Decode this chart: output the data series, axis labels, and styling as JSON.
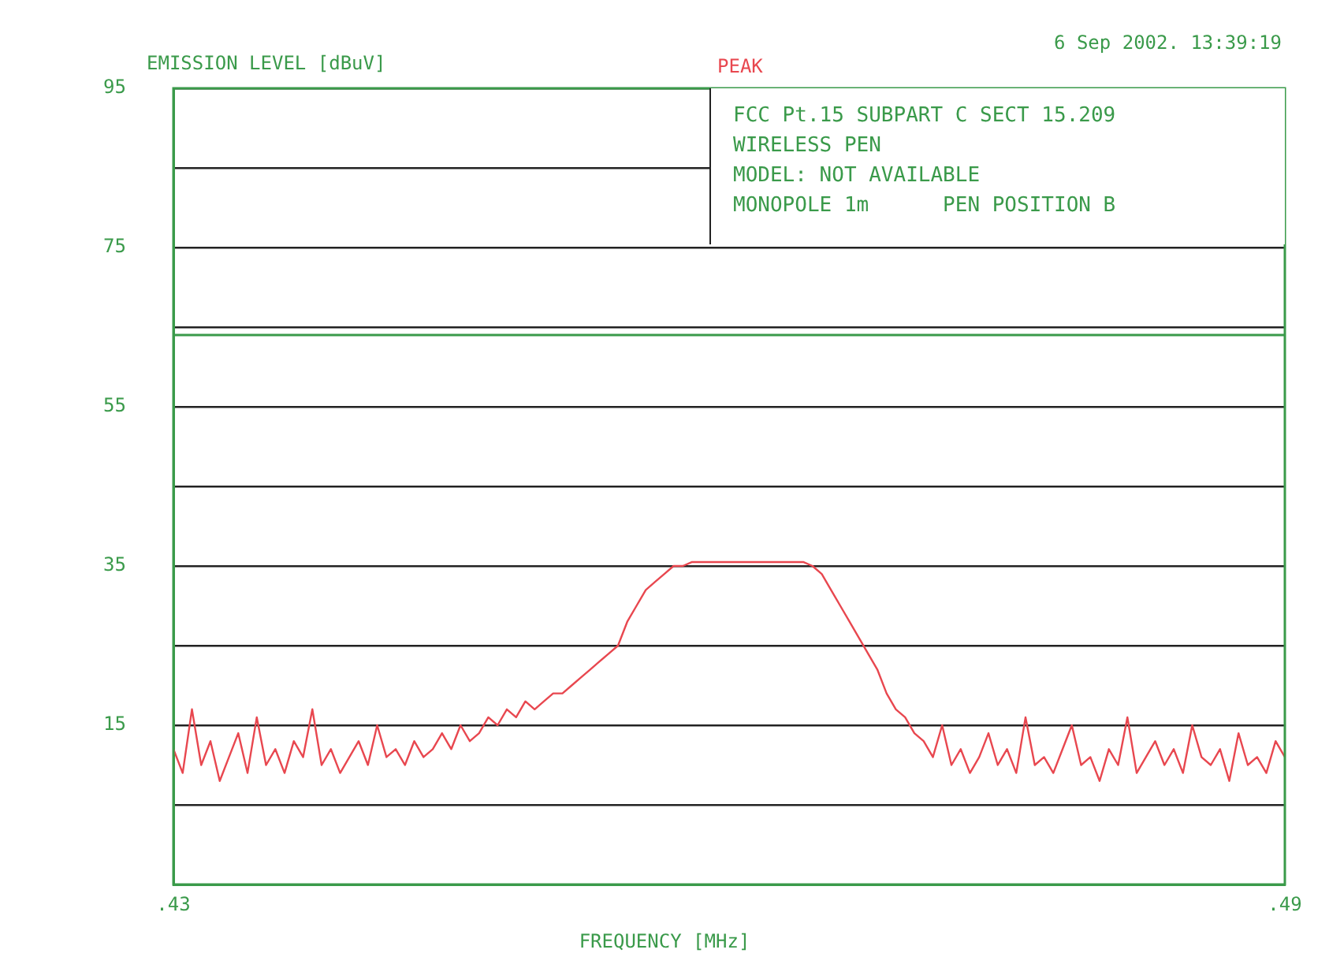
{
  "chart_data": {
    "type": "line",
    "subtitle": "6 Sep 2002. 13:39:19",
    "ylabel": "EMISSION LEVEL [dBuV]",
    "xlabel": "FREQUENCY [MHz]",
    "annotations": [
      "FCC Pt.15 SUBPART C SECT 15.209",
      "WIRELESS PEN",
      "MODEL: NOT AVAILABLE",
      "MONOPOLE 1m      PEN POSITION B"
    ],
    "xlim": [
      0.43,
      0.49
    ],
    "xticks": [
      {
        "value": 0.43,
        "label": ".43"
      },
      {
        "value": 0.49,
        "label": ".49"
      }
    ],
    "ylim": [
      -5,
      95
    ],
    "yticks": [
      95,
      {
        "value": 85,
        "label": null
      },
      75,
      {
        "value": 65,
        "label": null
      },
      55,
      {
        "value": 45,
        "label": null
      },
      35,
      {
        "value": 25,
        "label": null
      },
      15,
      {
        "value": 5,
        "label": null
      }
    ],
    "grid": "y",
    "marker": "none",
    "line_style": "solid",
    "ref_lines": [
      {
        "axis": "y",
        "value": 64,
        "color": "#3a9a4a"
      }
    ],
    "series": [
      {
        "name": "PEAK",
        "color": "#e8474f",
        "x": [
          0.43,
          0.4305,
          0.431,
          0.4315,
          0.432,
          0.4325,
          0.433,
          0.4335,
          0.434,
          0.4345,
          0.435,
          0.4355,
          0.436,
          0.4365,
          0.437,
          0.4375,
          0.438,
          0.4385,
          0.439,
          0.4395,
          0.44,
          0.4405,
          0.441,
          0.4415,
          0.442,
          0.4425,
          0.443,
          0.4435,
          0.444,
          0.4445,
          0.445,
          0.4455,
          0.446,
          0.4465,
          0.447,
          0.4475,
          0.448,
          0.4485,
          0.449,
          0.4495,
          0.45,
          0.4505,
          0.451,
          0.4515,
          0.452,
          0.4525,
          0.453,
          0.4535,
          0.454,
          0.4545,
          0.455,
          0.4555,
          0.456,
          0.4565,
          0.457,
          0.4575,
          0.458,
          0.4585,
          0.459,
          0.4595,
          0.46,
          0.4605,
          0.461,
          0.4615,
          0.462,
          0.4625,
          0.463,
          0.4635,
          0.464,
          0.4645,
          0.465,
          0.4655,
          0.466,
          0.4665,
          0.467,
          0.4675,
          0.468,
          0.4685,
          0.469,
          0.4695,
          0.47,
          0.4705,
          0.471,
          0.4715,
          0.472,
          0.4725,
          0.473,
          0.4735,
          0.474,
          0.4745,
          0.475,
          0.4755,
          0.476,
          0.4765,
          0.477,
          0.4775,
          0.478,
          0.4785,
          0.479,
          0.4795,
          0.48,
          0.4805,
          0.481,
          0.4815,
          0.482,
          0.4825,
          0.483,
          0.4835,
          0.484,
          0.4845,
          0.485,
          0.4855,
          0.486,
          0.4865,
          0.487,
          0.4875,
          0.488,
          0.4885,
          0.489,
          0.4895,
          0.49
        ],
        "values": [
          12,
          9,
          17,
          10,
          13,
          8,
          11,
          14,
          9,
          16,
          10,
          12,
          9,
          13,
          11,
          17,
          10,
          12,
          9,
          11,
          13,
          10,
          15,
          11,
          12,
          10,
          13,
          11,
          12,
          14,
          12,
          15,
          13,
          14,
          16,
          15,
          17,
          16,
          18,
          17,
          18,
          19,
          19,
          20,
          21,
          22,
          23,
          24,
          25,
          28,
          30,
          32,
          33,
          34,
          35,
          35,
          35.5,
          35.5,
          35.5,
          35.5,
          35.5,
          35.5,
          35.5,
          35.5,
          35.5,
          35.5,
          35.5,
          35.5,
          35.5,
          35,
          34,
          32,
          30,
          28,
          26,
          24,
          22,
          19,
          17,
          16,
          14,
          13,
          11,
          15,
          10,
          12,
          9,
          11,
          14,
          10,
          12,
          9,
          16,
          10,
          11,
          9,
          12,
          15,
          10,
          11,
          8,
          12,
          10,
          16,
          9,
          11,
          13,
          10,
          12,
          9,
          15,
          11,
          10,
          12,
          8,
          14,
          10,
          11,
          9,
          13,
          11
        ]
      }
    ]
  }
}
